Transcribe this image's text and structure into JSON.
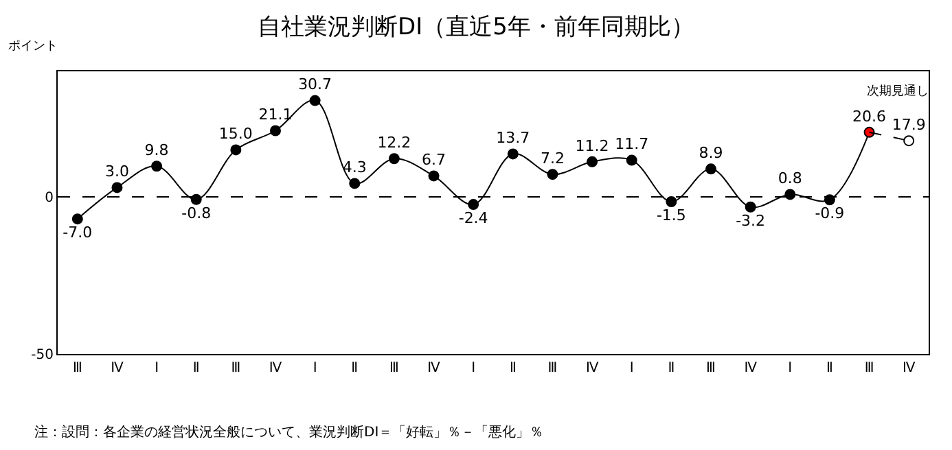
{
  "chart_data": {
    "type": "line",
    "title": "自社業況判断DI（直近5年・前年同期比）",
    "ylabel": "ポイント",
    "categories": [
      "Ⅲ",
      "Ⅳ",
      "Ⅰ",
      "Ⅱ",
      "Ⅲ",
      "Ⅳ",
      "Ⅰ",
      "Ⅱ",
      "Ⅲ",
      "Ⅳ",
      "Ⅰ",
      "Ⅱ",
      "Ⅲ",
      "Ⅳ",
      "Ⅰ",
      "Ⅱ",
      "Ⅲ",
      "Ⅳ",
      "Ⅰ",
      "Ⅱ",
      "Ⅲ",
      "Ⅳ"
    ],
    "series": [
      {
        "color": "#000000",
        "values": [
          -7.0,
          3.0,
          9.8,
          -0.8,
          15.0,
          21.1,
          30.7,
          4.3,
          12.2,
          6.7,
          -2.4,
          13.7,
          7.2,
          11.2,
          11.7,
          -1.5,
          8.9,
          -3.2,
          0.8,
          -0.9,
          20.6,
          null
        ],
        "colors": [
          "#000000",
          "#000000",
          "#000000",
          "#000000",
          "#000000",
          "#000000",
          "#000000",
          "#000000",
          "#000000",
          "#000000",
          "#000000",
          "#000000",
          "#000000",
          "#000000",
          "#000000",
          "#000000",
          "#000000",
          "#000000",
          "#000000",
          "#000000",
          "#ff0000",
          null
        ],
        "value_labels": [
          "-7.0",
          "3.0",
          "9.8",
          "-0.8",
          "15.0",
          "21.1",
          "30.7",
          "4.3",
          "12.2",
          "6.7",
          "-2.4",
          "13.7",
          "7.2",
          "11.2",
          "11.7",
          "-1.5",
          "8.9",
          "-3.2",
          "0.8",
          "-0.9",
          "20.6",
          null
        ],
        "line_style": "solid"
      },
      {
        "name": "次期見通し",
        "color": "#000000",
        "values": [
          null,
          null,
          null,
          null,
          null,
          null,
          null,
          null,
          null,
          null,
          null,
          null,
          null,
          null,
          null,
          null,
          null,
          null,
          null,
          null,
          null,
          17.9
        ],
        "colors": [
          null,
          null,
          null,
          null,
          null,
          null,
          null,
          null,
          null,
          null,
          null,
          null,
          null,
          null,
          null,
          null,
          null,
          null,
          null,
          null,
          null,
          "#ffffff"
        ],
        "value_labels": [
          null,
          null,
          null,
          null,
          null,
          null,
          null,
          null,
          null,
          null,
          null,
          null,
          null,
          null,
          null,
          null,
          null,
          null,
          null,
          null,
          null,
          "17.9"
        ],
        "line_style": "dashed"
      }
    ],
    "ylim": [
      -50,
      40
    ],
    "yticks": [
      0,
      -50
    ],
    "ref_lines": [
      {
        "axis": "y",
        "value": 0,
        "line_style": "dashed",
        "color": "#000000"
      }
    ],
    "marker": "circle",
    "annotations": [
      "注：設問：各企業の経営状況全般について、業況判断DI＝「好転」％－「悪化」％"
    ]
  }
}
